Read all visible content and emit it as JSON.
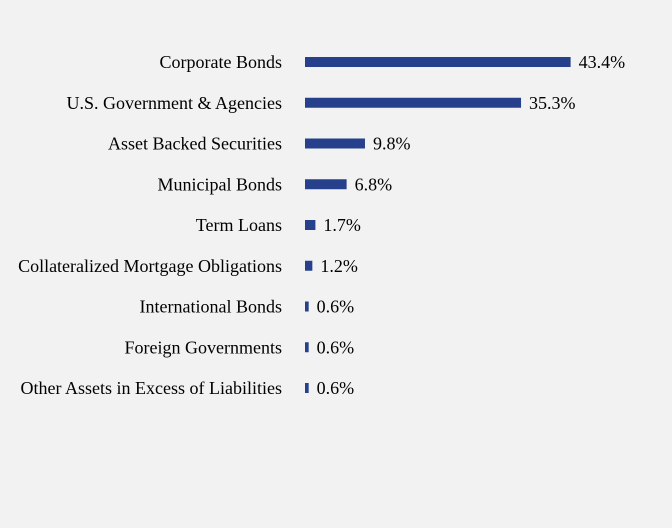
{
  "chart_data": {
    "type": "bar",
    "orientation": "horizontal",
    "categories": [
      "Corporate Bonds",
      "U.S. Government & Agencies",
      "Asset Backed Securities",
      "Municipal Bonds",
      "Term Loans",
      "Collateralized Mortgage Obligations",
      "International Bonds",
      "Foreign Governments",
      "Other Assets in Excess of Liabilities"
    ],
    "values": [
      43.4,
      35.3,
      9.8,
      6.8,
      1.7,
      1.2,
      0.6,
      0.6,
      0.6
    ],
    "value_labels": [
      "43.4%",
      "35.3%",
      "9.8%",
      "6.8%",
      "1.7%",
      "1.2%",
      "0.6%",
      "0.6%",
      "0.6%"
    ],
    "xlim": [
      0,
      50
    ],
    "grid": false,
    "legend": "none",
    "bar_color": "#27408b",
    "background_color": "#f2f2f2"
  }
}
